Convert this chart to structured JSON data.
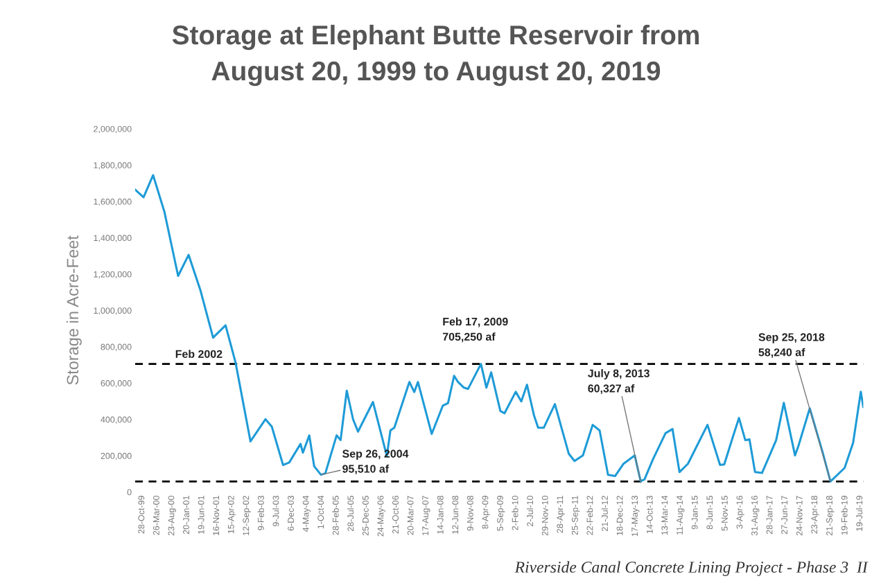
{
  "chart_data": {
    "type": "line",
    "title": "Storage at Elephant Butte Reservoir from\nAugust 20, 1999 to August 20, 2019",
    "ylabel": "Storage in Acre-Feet",
    "x": [
      "1999-08-20",
      "1999-11-12",
      "2000-02-16",
      "2000-06-08",
      "2000-10-24",
      "2001-02-06",
      "2001-06-06",
      "2001-10-10",
      "2002-02-12",
      "2002-05-23",
      "2002-10-20",
      "2003-03-20",
      "2003-05-22",
      "2003-09-12",
      "2003-11-13",
      "2004-03-05",
      "2004-03-29",
      "2004-06-01",
      "2004-07-20",
      "2004-09-26",
      "2004-11-09",
      "2005-03-02",
      "2005-04-11",
      "2005-06-12",
      "2005-08-14",
      "2005-10-03",
      "2006-03-02",
      "2006-07-19",
      "2006-08-24",
      "2006-10-02",
      "2007-03-02",
      "2007-04-20",
      "2007-05-27",
      "2007-10-12",
      "2008-02-01",
      "2008-03-24",
      "2008-05-24",
      "2008-07-02",
      "2008-08-30",
      "2008-10-11",
      "2009-02-17",
      "2009-04-13",
      "2009-05-31",
      "2009-08-31",
      "2009-10-12",
      "2010-02-01",
      "2010-03-29",
      "2010-05-25",
      "2010-08-03",
      "2010-09-14",
      "2010-11-09",
      "2011-03-01",
      "2011-05-10",
      "2011-07-19",
      "2011-09-14",
      "2011-12-07",
      "2012-03-14",
      "2012-05-23",
      "2012-08-15",
      "2012-10-25",
      "2013-01-18",
      "2013-05-10",
      "2013-07-08",
      "2013-08-16",
      "2013-11-08",
      "2014-03-15",
      "2014-05-24",
      "2014-08-02",
      "2014-10-26",
      "2015-05-10",
      "2015-09-13",
      "2015-10-25",
      "2016-01-18",
      "2016-03-21",
      "2016-05-23",
      "2016-07-04",
      "2016-08-29",
      "2016-11-07",
      "2017-03-29",
      "2017-06-14",
      "2017-10-04",
      "2017-11-08",
      "2018-03-01",
      "2018-07-05",
      "2018-09-25",
      "2019-02-14",
      "2019-05-10",
      "2019-07-26",
      "2019-08-20"
    ],
    "series": [
      {
        "color": "#1e9bd7",
        "values": [
          1665000,
          1623000,
          1745000,
          1544000,
          1190000,
          1306000,
          1109000,
          850000,
          918000,
          714000,
          279000,
          401000,
          360000,
          149000,
          163000,
          265000,
          217000,
          312000,
          142000,
          95510,
          103000,
          312000,
          286000,
          558000,
          401000,
          333000,
          496000,
          198000,
          340000,
          354000,
          606000,
          551000,
          606000,
          320000,
          476000,
          490000,
          640000,
          606000,
          575000,
          568000,
          705250,
          575000,
          659000,
          446000,
          434000,
          552000,
          499000,
          591000,
          423000,
          354000,
          354000,
          484000,
          347000,
          210000,
          171000,
          202000,
          370000,
          339000,
          95000,
          88000,
          156000,
          202000,
          60327,
          70000,
          179000,
          324000,
          347000,
          110000,
          156000,
          370000,
          149000,
          152000,
          301000,
          408000,
          286000,
          290000,
          110000,
          105000,
          286000,
          491000,
          202000,
          255000,
          461000,
          225000,
          58240,
          133000,
          271000,
          552000,
          469000
        ]
      }
    ],
    "xlim": [
      "1999-08-20",
      "2019-08-20"
    ],
    "xticks": [
      {
        "value": "1999-10-28",
        "label": "28-Oct-99"
      },
      {
        "value": "2000-03-26",
        "label": "26-Mar-00"
      },
      {
        "value": "2000-08-23",
        "label": "23-Aug-00"
      },
      {
        "value": "2001-01-20",
        "label": "20-Jan-01"
      },
      {
        "value": "2001-06-19",
        "label": "19-Jun-01"
      },
      {
        "value": "2001-11-16",
        "label": "16-Nov-01"
      },
      {
        "value": "2002-04-15",
        "label": "15-Apr-02"
      },
      {
        "value": "2002-09-12",
        "label": "12-Sep-02"
      },
      {
        "value": "2003-02-09",
        "label": "9-Feb-03"
      },
      {
        "value": "2003-07-09",
        "label": "9-Jul-03"
      },
      {
        "value": "2003-12-06",
        "label": "6-Dec-03"
      },
      {
        "value": "2004-05-04",
        "label": "4-May-04"
      },
      {
        "value": "2004-10-01",
        "label": "1-Oct-04"
      },
      {
        "value": "2005-02-28",
        "label": "28-Feb-05"
      },
      {
        "value": "2005-07-28",
        "label": "28-Jul-05"
      },
      {
        "value": "2005-12-25",
        "label": "25-Dec-05"
      },
      {
        "value": "2006-05-24",
        "label": "24-May-06"
      },
      {
        "value": "2006-10-21",
        "label": "21-Oct-06"
      },
      {
        "value": "2007-03-20",
        "label": "20-Mar-07"
      },
      {
        "value": "2007-08-17",
        "label": "17-Aug-07"
      },
      {
        "value": "2008-01-14",
        "label": "14-Jan-08"
      },
      {
        "value": "2008-06-12",
        "label": "12-Jun-08"
      },
      {
        "value": "2008-11-09",
        "label": "9-Nov-08"
      },
      {
        "value": "2009-04-08",
        "label": "8-Apr-09"
      },
      {
        "value": "2009-09-05",
        "label": "5-Sep-09"
      },
      {
        "value": "2010-02-02",
        "label": "2-Feb-10"
      },
      {
        "value": "2010-07-02",
        "label": "2-Jul-10"
      },
      {
        "value": "2010-11-29",
        "label": "29-Nov-10"
      },
      {
        "value": "2011-04-28",
        "label": "28-Apr-11"
      },
      {
        "value": "2011-09-25",
        "label": "25-Sep-11"
      },
      {
        "value": "2012-02-22",
        "label": "22-Feb-12"
      },
      {
        "value": "2012-07-21",
        "label": "21-Jul-12"
      },
      {
        "value": "2012-12-18",
        "label": "18-Dec-12"
      },
      {
        "value": "2013-05-17",
        "label": "17-May-13"
      },
      {
        "value": "2013-10-14",
        "label": "14-Oct-13"
      },
      {
        "value": "2014-03-13",
        "label": "13-Mar-14"
      },
      {
        "value": "2014-08-11",
        "label": "11-Aug-14"
      },
      {
        "value": "2015-01-09",
        "label": "9-Jan-15"
      },
      {
        "value": "2015-06-08",
        "label": "8-Jun-15"
      },
      {
        "value": "2015-11-05",
        "label": "5-Nov-15"
      },
      {
        "value": "2016-04-03",
        "label": "3-Apr-16"
      },
      {
        "value": "2016-08-31",
        "label": "31-Aug-16"
      },
      {
        "value": "2017-01-28",
        "label": "28-Jan-17"
      },
      {
        "value": "2017-06-27",
        "label": "27-Jun-17"
      },
      {
        "value": "2017-11-24",
        "label": "24-Nov-17"
      },
      {
        "value": "2018-04-23",
        "label": "23-Apr-18"
      },
      {
        "value": "2018-09-21",
        "label": "21-Sep-18"
      },
      {
        "value": "2019-02-19",
        "label": "19-Feb-19"
      },
      {
        "value": "2019-07-19",
        "label": "19-Jul-19"
      }
    ],
    "ylim": [
      0,
      2000000
    ],
    "yticks": [
      {
        "value": 0,
        "label": "0"
      },
      {
        "value": 200000,
        "label": "200,000"
      },
      {
        "value": 400000,
        "label": "400,000"
      },
      {
        "value": 600000,
        "label": "600,000"
      },
      {
        "value": 800000,
        "label": "800,000"
      },
      {
        "value": 1000000,
        "label": "1,000,000"
      },
      {
        "value": 1200000,
        "label": "1,200,000"
      },
      {
        "value": 1400000,
        "label": "1,400,000"
      },
      {
        "value": 1600000,
        "label": "1,600,000"
      },
      {
        "value": 1800000,
        "label": "1,800,000"
      },
      {
        "value": 2000000,
        "label": "2,000,000"
      }
    ],
    "ref_lines": [
      {
        "axis": "y",
        "value": 705250,
        "color": "#000000",
        "line_style": "dashed"
      },
      {
        "axis": "y",
        "value": 58240,
        "color": "#000000",
        "line_style": "dashed"
      }
    ],
    "annotations": [
      {
        "text": "Feb 2002",
        "x": "2002-02-01",
        "y": 705250
      },
      {
        "text": "Sep 26, 2004\n95,510 af",
        "x": "2004-09-26",
        "y": 95510
      },
      {
        "text": "Feb 17, 2009\n705,250 af",
        "x": "2009-02-17",
        "y": 705250
      },
      {
        "text": "July 8, 2013\n60,327 af",
        "x": "2013-07-08",
        "y": 60327
      },
      {
        "text": "Sep 25, 2018\n58,240 af",
        "x": "2018-09-25",
        "y": 58240
      },
      "Riverside Canal Concrete Lining Project - Phase 3  II"
    ],
    "grid": false,
    "legend": false,
    "marker": "none",
    "line_style": "solid"
  }
}
